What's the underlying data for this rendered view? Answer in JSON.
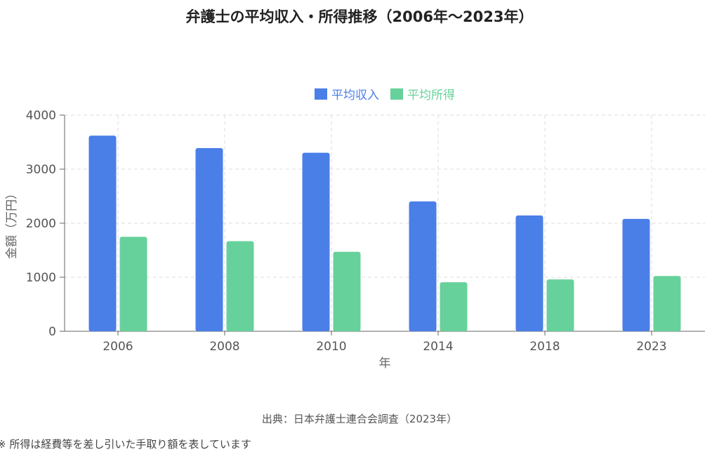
{
  "chart_data": {
    "type": "bar",
    "title": "弁護士の平均収入・所得推移（2006年〜2023年）",
    "xlabel": "年",
    "ylabel": "金額（万円）",
    "categories": [
      "2006",
      "2008",
      "2010",
      "2014",
      "2018",
      "2023"
    ],
    "series": [
      {
        "name": "平均収入",
        "color": "#4a7fe8",
        "values": [
          3620,
          3389,
          3304,
          2402,
          2143,
          2080
        ]
      },
      {
        "name": "平均所得",
        "color": "#67d19b",
        "values": [
          1748,
          1667,
          1471,
          907,
          959,
          1022
        ]
      }
    ],
    "ylim": [
      0,
      4000
    ],
    "yticks": [
      "0",
      "1000",
      "2000",
      "3000",
      "4000"
    ],
    "grid": true,
    "legend_position": "top-center"
  },
  "source": "出典：日本弁護士連合会調査（2023年）",
  "note": "※ 所得は経費等を差し引いた手取り額を表しています"
}
